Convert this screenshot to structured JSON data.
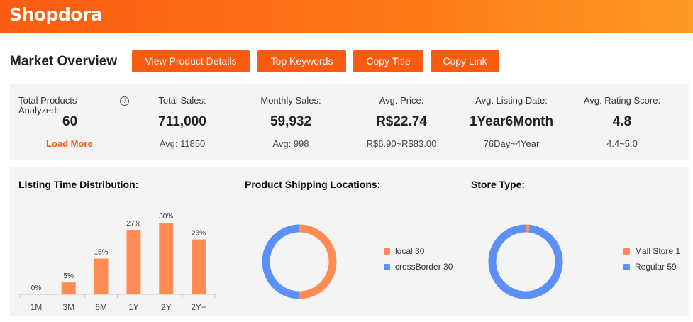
{
  "header": {
    "logo": "Shopdora"
  },
  "page_title": "Market Overview",
  "buttons": {
    "view_details": "View Product Details",
    "top_keywords": "Top Keywords",
    "copy_title": "Copy Title",
    "copy_link": "Copy Link"
  },
  "stats": {
    "total_products": {
      "label_line1": "Total Products",
      "label_line2": "Analyzed:",
      "value": "60",
      "load_more": "Load More",
      "help": "?"
    },
    "total_sales": {
      "label": "Total Sales:",
      "value": "711,000",
      "sub": "Avg: 11850"
    },
    "monthly_sales": {
      "label": "Monthly Sales:",
      "value": "59,932",
      "sub": "Avg: 998"
    },
    "avg_price": {
      "label": "Avg. Price:",
      "value": "R$22.74",
      "sub": "R$6.90~R$83.00"
    },
    "avg_listing": {
      "label": "Avg. Listing Date:",
      "value": "1Year6Month",
      "sub": "76Day~4Year"
    },
    "avg_rating": {
      "label": "Avg. Rating Score:",
      "value": "4.8",
      "sub": "4.4~5.0"
    }
  },
  "panels": {
    "listing": {
      "title": "Listing Time Distribution:"
    },
    "shipping": {
      "title": "Product Shipping Locations:"
    },
    "store": {
      "title": "Store Type:"
    }
  },
  "chart_data": [
    {
      "type": "bar",
      "title": "Listing Time Distribution:",
      "categories": [
        "1M",
        "3M",
        "6M",
        "1Y",
        "2Y",
        "2Y+"
      ],
      "values": [
        0,
        5,
        15,
        27,
        30,
        23
      ],
      "labels": [
        "0%",
        "5%",
        "15%",
        "27%",
        "30%",
        "23%"
      ],
      "ylim": [
        0,
        30
      ],
      "color": "#ff8c55"
    },
    {
      "type": "pie",
      "title": "Product Shipping Locations:",
      "series": [
        {
          "name": "local",
          "value": 30,
          "color": "#ff8c55",
          "legend": "local 30"
        },
        {
          "name": "crossBorder",
          "value": 30,
          "color": "#5b8ff9",
          "legend": "crossBorder 30"
        }
      ]
    },
    {
      "type": "pie",
      "title": "Store Type:",
      "series": [
        {
          "name": "Mall Store",
          "value": 1,
          "color": "#ff8c55",
          "legend": "Mall Store 1"
        },
        {
          "name": "Regular",
          "value": 59,
          "color": "#5b8ff9",
          "legend": "Regular 59"
        }
      ]
    }
  ]
}
